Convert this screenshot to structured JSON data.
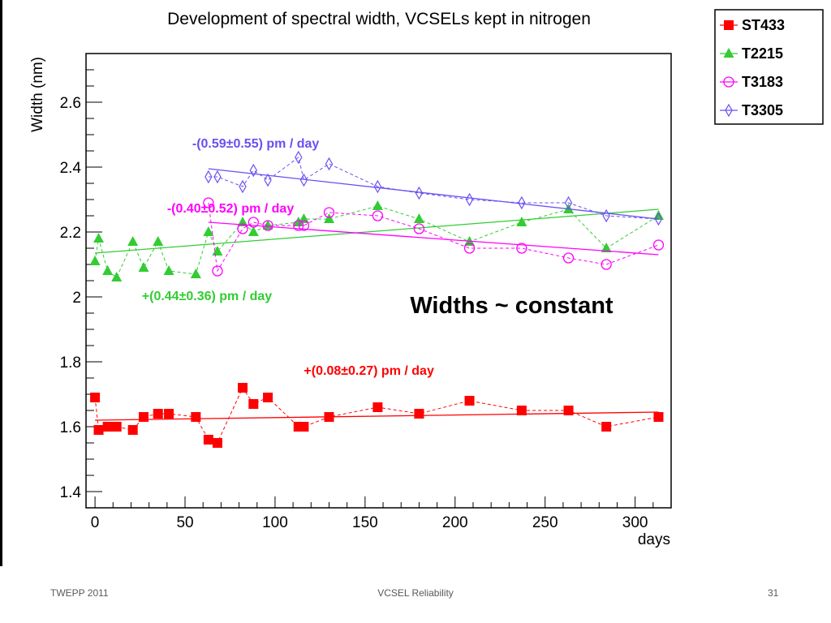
{
  "footer": {
    "left": "TWEPP 2011",
    "center": "VCSEL Reliability",
    "right": "31"
  },
  "chart_data": {
    "type": "scatter",
    "title": "Development of spectral width, VCSELs kept in nitrogen",
    "xlabel": "days",
    "ylabel": "Width (nm)",
    "xlim": [
      -5,
      320
    ],
    "ylim": [
      1.35,
      2.75
    ],
    "xticks": [
      0,
      50,
      100,
      150,
      200,
      250,
      300
    ],
    "yticks": [
      1.4,
      1.6,
      1.8,
      2,
      2.2,
      2.4,
      2.6
    ],
    "ytick_labels": [
      "1.4",
      "1.6",
      "1.8",
      "2",
      "2.2",
      "2.4",
      "2.6"
    ],
    "grid": false,
    "legend_position": "top-right",
    "series": [
      {
        "name": "ST433",
        "color": "#ff0000",
        "marker": "square",
        "x": [
          0,
          2,
          7,
          12,
          21,
          27,
          35,
          41,
          56,
          63,
          68,
          82,
          88,
          96,
          113,
          116,
          130,
          157,
          180,
          208,
          237,
          263,
          284,
          313
        ],
        "y": [
          1.69,
          1.59,
          1.6,
          1.6,
          1.59,
          1.63,
          1.64,
          1.64,
          1.63,
          1.56,
          1.55,
          1.72,
          1.67,
          1.69,
          1.6,
          1.6,
          1.63,
          1.66,
          1.64,
          1.68,
          1.65,
          1.65,
          1.6,
          1.63
        ],
        "fit": {
          "x": [
            0,
            313
          ],
          "y": [
            1.62,
            1.645
          ]
        }
      },
      {
        "name": "T2215",
        "color": "#33cc33",
        "marker": "triangle",
        "x": [
          0,
          2,
          7,
          12,
          21,
          27,
          35,
          41,
          56,
          63,
          68,
          82,
          88,
          96,
          113,
          116,
          130,
          157,
          180,
          208,
          237,
          263,
          284,
          313
        ],
        "y": [
          2.11,
          2.18,
          2.08,
          2.06,
          2.17,
          2.09,
          2.17,
          2.08,
          2.07,
          2.2,
          2.14,
          2.23,
          2.2,
          2.22,
          2.23,
          2.24,
          2.24,
          2.28,
          2.24,
          2.17,
          2.23,
          2.27,
          2.15,
          2.25
        ],
        "fit": {
          "x": [
            0,
            313
          ],
          "y": [
            2.135,
            2.27
          ]
        }
      },
      {
        "name": "T3183",
        "color": "#ff00ff",
        "marker": "circle",
        "x": [
          63,
          68,
          82,
          88,
          96,
          113,
          116,
          130,
          157,
          180,
          208,
          237,
          263,
          284,
          313
        ],
        "y": [
          2.29,
          2.08,
          2.21,
          2.23,
          2.22,
          2.22,
          2.22,
          2.26,
          2.25,
          2.21,
          2.15,
          2.15,
          2.12,
          2.1,
          2.16
        ],
        "fit": {
          "x": [
            63,
            313
          ],
          "y": [
            2.23,
            2.13
          ]
        }
      },
      {
        "name": "T3305",
        "color": "#6a4ff0",
        "marker": "diamond",
        "x": [
          63,
          68,
          82,
          88,
          96,
          113,
          116,
          130,
          157,
          180,
          208,
          237,
          263,
          284,
          313
        ],
        "y": [
          2.37,
          2.37,
          2.34,
          2.39,
          2.36,
          2.43,
          2.36,
          2.41,
          2.34,
          2.32,
          2.3,
          2.29,
          2.29,
          2.25,
          2.24
        ],
        "fit": {
          "x": [
            63,
            313
          ],
          "y": [
            2.395,
            2.24
          ]
        }
      }
    ],
    "annotations": [
      {
        "text": "-(0.59±0.55) pm / day",
        "color": "#6a4ff0",
        "x": 54,
        "y": 2.46
      },
      {
        "text": "-(0.40±0.52) pm / day",
        "color": "#ff00ff",
        "x": 40,
        "y": 2.26
      },
      {
        "text": "+(0.44±0.36) pm / day",
        "color": "#33cc33",
        "x": 26,
        "y": 1.99
      },
      {
        "text": "+(0.08±0.27) pm / day",
        "color": "#ff0000",
        "x": 116,
        "y": 1.76
      },
      {
        "text": "Widths ~ constant",
        "color": "#000000",
        "x": 175,
        "y": 1.95,
        "size": "large"
      }
    ]
  }
}
